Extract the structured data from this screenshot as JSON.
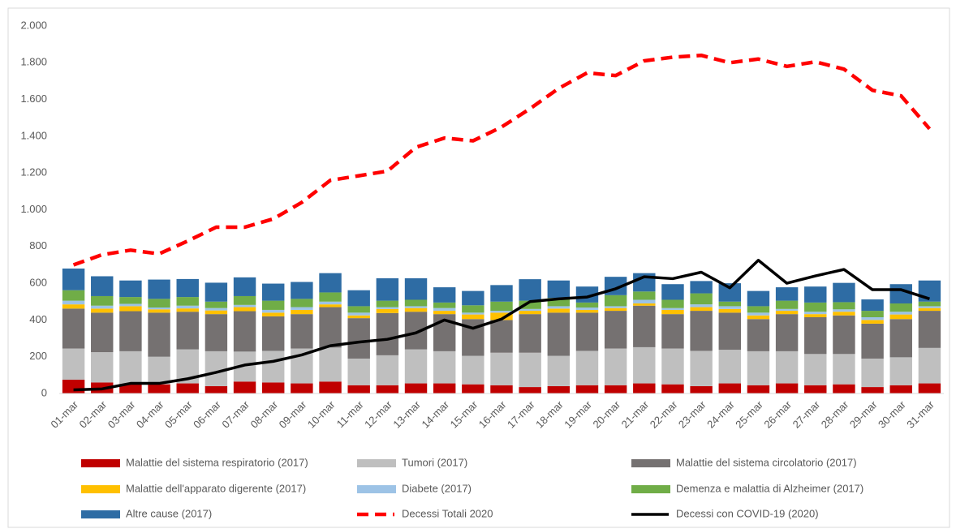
{
  "chart_data": {
    "type": "bar",
    "stacked": true,
    "categories": [
      "01-mar",
      "02-mar",
      "03-mar",
      "04-mar",
      "05-mar",
      "06-mar",
      "07-mar",
      "08-mar",
      "09-mar",
      "10-mar",
      "11-mar",
      "12-mar",
      "13-mar",
      "14-mar",
      "15-mar",
      "16-mar",
      "17-mar",
      "18-mar",
      "19-mar",
      "20-mar",
      "21-mar",
      "22-mar",
      "23-mar",
      "24-mar",
      "25-mar",
      "26-mar",
      "27-mar",
      "28-mar",
      "29-mar",
      "30-mar",
      "31-mar"
    ],
    "ylim": [
      0,
      2000
    ],
    "yticks": [
      0,
      200,
      400,
      600,
      800,
      {
        "value": 1000,
        "label": "1.000"
      },
      {
        "value": 1200,
        "label": "1.200"
      },
      {
        "value": 1400,
        "label": "1.400"
      },
      {
        "value": 1600,
        "label": "1.600"
      },
      {
        "value": 1800,
        "label": "1.800"
      },
      {
        "value": 2000,
        "label": "2.000"
      }
    ],
    "grid": false,
    "series": [
      {
        "name": "Malattie del sistema respiratorio (2017)",
        "color": "#c00000",
        "values": [
          75,
          60,
          50,
          50,
          55,
          40,
          65,
          60,
          55,
          65,
          45,
          45,
          55,
          55,
          50,
          45,
          35,
          40,
          45,
          45,
          55,
          50,
          40,
          55,
          45,
          55,
          45,
          50,
          35,
          45,
          55
        ]
      },
      {
        "name": "Tumori (2017)",
        "color": "#bfbfbf",
        "values": [
          170,
          165,
          180,
          150,
          185,
          190,
          163,
          172,
          190,
          185,
          145,
          163,
          185,
          175,
          155,
          177,
          187,
          165,
          187,
          200,
          197,
          195,
          192,
          183,
          185,
          175,
          170,
          165,
          155,
          152,
          193
        ]
      },
      {
        "name": "Malattie del sistema circolatorio (2017)",
        "color": "#757171",
        "values": [
          217,
          215,
          218,
          240,
          205,
          202,
          220,
          188,
          187,
          220,
          220,
          230,
          205,
          202,
          200,
          178,
          210,
          235,
          208,
          205,
          226,
          187,
          218,
          202,
          175,
          202,
          200,
          210,
          190,
          208,
          202
        ]
      },
      {
        "name": "Malattie dell'apparato digerente (2017)",
        "color": "#ffc000",
        "values": [
          23,
          22,
          27,
          18,
          18,
          20,
          22,
          20,
          23,
          15,
          15,
          22,
          20,
          18,
          25,
          40,
          18,
          22,
          15,
          15,
          12,
          23,
          20,
          20,
          20,
          18,
          17,
          20,
          20,
          25,
          15
        ]
      },
      {
        "name": "Diabete (2017)",
        "color": "#9dc3e6",
        "values": [
          20,
          16,
          13,
          10,
          15,
          13,
          12,
          15,
          15,
          15,
          15,
          10,
          10,
          15,
          10,
          10,
          10,
          13,
          13,
          10,
          20,
          10,
          15,
          15,
          15,
          10,
          13,
          13,
          15,
          15,
          10
        ]
      },
      {
        "name": "Demenza e malattia di Alzheimer (2017)",
        "color": "#70ad47",
        "values": [
          57,
          52,
          37,
          47,
          47,
          35,
          48,
          50,
          45,
          50,
          35,
          35,
          35,
          30,
          40,
          50,
          45,
          45,
          27,
          60,
          45,
          45,
          60,
          25,
          35,
          45,
          50,
          39,
          35,
          45,
          25
        ]
      },
      {
        "name": "Altre cause (2017)",
        "color": "#2e6ca4",
        "values": [
          118,
          108,
          90,
          105,
          98,
          103,
          102,
          93,
          92,
          105,
          87,
          122,
          117,
          83,
          78,
          90,
          117,
          95,
          87,
          100,
          100,
          85,
          67,
          100,
          83,
          73,
          87,
          105,
          62,
          105,
          115
        ]
      },
      {
        "name": "Decessi Totali 2020",
        "color": "#ff0000",
        "type": "line",
        "dashed": true,
        "values": [
          700,
          755,
          780,
          760,
          830,
          905,
          905,
          950,
          1040,
          1160,
          1185,
          1210,
          1340,
          1390,
          1375,
          1450,
          1550,
          1660,
          1745,
          1730,
          1810,
          1830,
          1840,
          1800,
          1820,
          1780,
          1805,
          1765,
          1650,
          1620,
          1440
        ]
      },
      {
        "name": "Decessi con COVID-19 (2020)",
        "color": "#000000",
        "type": "line",
        "dashed": false,
        "values": [
          20,
          25,
          55,
          55,
          80,
          115,
          155,
          175,
          210,
          260,
          280,
          295,
          330,
          400,
          355,
          405,
          500,
          515,
          525,
          570,
          635,
          625,
          660,
          575,
          725,
          600,
          640,
          675,
          565,
          565,
          515
        ]
      }
    ]
  }
}
